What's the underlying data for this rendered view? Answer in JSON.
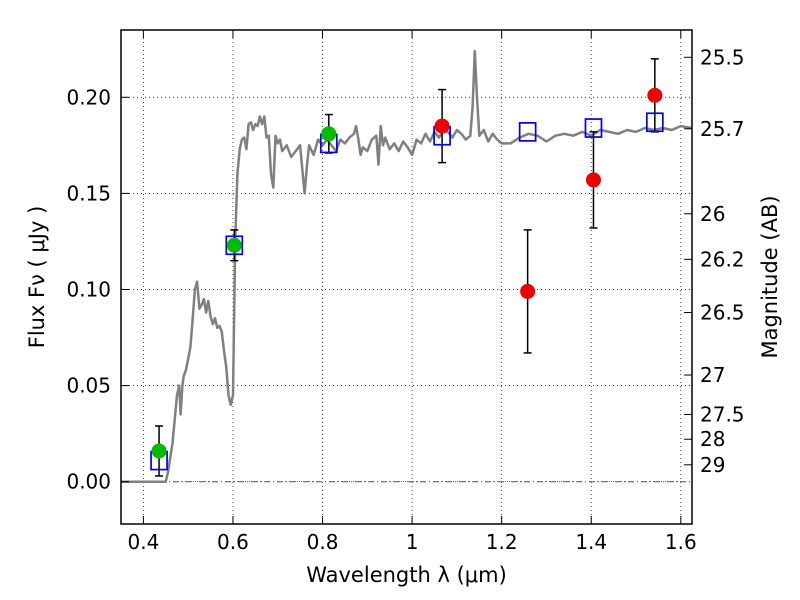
{
  "chart_data": {
    "type": "scatter",
    "xlabel": "Wavelength  λ (μm)",
    "ylabel": "Flux  Fν  ( μJy )",
    "ylabel_right": "Magnitude (AB)",
    "xlim": [
      0.35,
      1.625
    ],
    "ylim": [
      -0.022,
      0.235
    ],
    "grid": true,
    "x_ticks": [
      0.4,
      0.6,
      0.8,
      1.0,
      1.2,
      1.4,
      1.6
    ],
    "x_tick_labels": [
      "0.4",
      "0.6",
      "0.8",
      "1",
      "1.2",
      "1.4",
      "1.6"
    ],
    "y_ticks": [
      0.0,
      0.05,
      0.1,
      0.15,
      0.2
    ],
    "y_tick_labels": [
      "0.00",
      "0.05",
      "0.10",
      "0.15",
      "0.20"
    ],
    "right_ticks": [
      {
        "flux": 0.2208,
        "label": "25.5"
      },
      {
        "flux": 0.1836,
        "label": "25.7"
      },
      {
        "flux": 0.1394,
        "label": "26"
      },
      {
        "flux": 0.1157,
        "label": "26.2"
      },
      {
        "flux": 0.088,
        "label": "26.5"
      },
      {
        "flux": 0.0555,
        "label": "27"
      },
      {
        "flux": 0.035,
        "label": "27.5"
      },
      {
        "flux": 0.0221,
        "label": "28"
      },
      {
        "flux": 0.0088,
        "label": "29"
      }
    ],
    "colors": {
      "green_points": "#00bb00",
      "red_points": "#ee0000",
      "model_boxes": "#0000ee",
      "spectrum": "#808080",
      "errorbars": "#000000"
    },
    "series": [
      {
        "style": "green-circles",
        "points": [
          {
            "x": 0.435,
            "y": 0.016,
            "err": 0.013
          },
          {
            "x": 0.603,
            "y": 0.123,
            "err": 0.008
          },
          {
            "x": 0.814,
            "y": 0.181,
            "err": 0.01
          }
        ]
      },
      {
        "style": "red-circles",
        "points": [
          {
            "x": 1.067,
            "y": 0.185,
            "err": 0.019
          },
          {
            "x": 1.258,
            "y": 0.099,
            "err": 0.032
          },
          {
            "x": 1.405,
            "y": 0.157,
            "err": 0.025
          },
          {
            "x": 1.542,
            "y": 0.201,
            "err": 0.019
          }
        ]
      },
      {
        "style": "blue-open-squares",
        "points": [
          {
            "x": 0.435,
            "y": 0.011
          },
          {
            "x": 0.603,
            "y": 0.123
          },
          {
            "x": 0.814,
            "y": 0.176
          },
          {
            "x": 1.067,
            "y": 0.18
          },
          {
            "x": 1.258,
            "y": 0.182
          },
          {
            "x": 1.405,
            "y": 0.184
          },
          {
            "x": 1.542,
            "y": 0.187
          }
        ]
      },
      {
        "style": "gray-line",
        "points": [
          [
            0.35,
            0.0
          ],
          [
            0.45,
            0.0
          ],
          [
            0.455,
            0.005
          ],
          [
            0.465,
            0.02
          ],
          [
            0.475,
            0.045
          ],
          [
            0.48,
            0.05
          ],
          [
            0.483,
            0.035
          ],
          [
            0.487,
            0.05
          ],
          [
            0.49,
            0.055
          ],
          [
            0.495,
            0.058
          ],
          [
            0.5,
            0.064
          ],
          [
            0.505,
            0.07
          ],
          [
            0.51,
            0.085
          ],
          [
            0.515,
            0.1
          ],
          [
            0.52,
            0.104
          ],
          [
            0.525,
            0.09
          ],
          [
            0.53,
            0.092
          ],
          [
            0.535,
            0.095
          ],
          [
            0.54,
            0.088
          ],
          [
            0.545,
            0.094
          ],
          [
            0.55,
            0.086
          ],
          [
            0.555,
            0.082
          ],
          [
            0.56,
            0.085
          ],
          [
            0.565,
            0.08
          ],
          [
            0.57,
            0.081
          ],
          [
            0.575,
            0.078
          ],
          [
            0.58,
            0.068
          ],
          [
            0.585,
            0.06
          ],
          [
            0.59,
            0.045
          ],
          [
            0.595,
            0.04
          ],
          [
            0.6,
            0.045
          ],
          [
            0.605,
            0.125
          ],
          [
            0.61,
            0.16
          ],
          [
            0.615,
            0.173
          ],
          [
            0.62,
            0.178
          ],
          [
            0.625,
            0.179
          ],
          [
            0.63,
            0.173
          ],
          [
            0.635,
            0.186
          ],
          [
            0.64,
            0.187
          ],
          [
            0.645,
            0.183
          ],
          [
            0.65,
            0.186
          ],
          [
            0.655,
            0.185
          ],
          [
            0.66,
            0.19
          ],
          [
            0.665,
            0.186
          ],
          [
            0.67,
            0.19
          ],
          [
            0.675,
            0.179
          ],
          [
            0.68,
            0.18
          ],
          [
            0.685,
            0.16
          ],
          [
            0.69,
            0.153
          ],
          [
            0.695,
            0.18
          ],
          [
            0.7,
            0.176
          ],
          [
            0.705,
            0.178
          ],
          [
            0.71,
            0.172
          ],
          [
            0.72,
            0.175
          ],
          [
            0.73,
            0.169
          ],
          [
            0.74,
            0.172
          ],
          [
            0.75,
            0.175
          ],
          [
            0.755,
            0.162
          ],
          [
            0.76,
            0.15
          ],
          [
            0.765,
            0.164
          ],
          [
            0.77,
            0.175
          ],
          [
            0.78,
            0.17
          ],
          [
            0.79,
            0.178
          ],
          [
            0.8,
            0.175
          ],
          [
            0.81,
            0.178
          ],
          [
            0.82,
            0.175
          ],
          [
            0.83,
            0.172
          ],
          [
            0.84,
            0.178
          ],
          [
            0.85,
            0.176
          ],
          [
            0.86,
            0.179
          ],
          [
            0.87,
            0.181
          ],
          [
            0.875,
            0.185
          ],
          [
            0.88,
            0.178
          ],
          [
            0.885,
            0.17
          ],
          [
            0.89,
            0.174
          ],
          [
            0.9,
            0.172
          ],
          [
            0.91,
            0.178
          ],
          [
            0.92,
            0.18
          ],
          [
            0.925,
            0.165
          ],
          [
            0.93,
            0.185
          ],
          [
            0.935,
            0.175
          ],
          [
            0.94,
            0.179
          ],
          [
            0.95,
            0.173
          ],
          [
            0.96,
            0.176
          ],
          [
            0.97,
            0.172
          ],
          [
            0.98,
            0.177
          ],
          [
            0.99,
            0.174
          ],
          [
            1.0,
            0.17
          ],
          [
            1.01,
            0.178
          ],
          [
            1.02,
            0.176
          ],
          [
            1.03,
            0.181
          ],
          [
            1.04,
            0.177
          ],
          [
            1.05,
            0.182
          ],
          [
            1.06,
            0.179
          ],
          [
            1.07,
            0.183
          ],
          [
            1.08,
            0.182
          ],
          [
            1.09,
            0.179
          ],
          [
            1.1,
            0.183
          ],
          [
            1.11,
            0.181
          ],
          [
            1.12,
            0.178
          ],
          [
            1.13,
            0.18
          ],
          [
            1.135,
            0.195
          ],
          [
            1.14,
            0.224
          ],
          [
            1.145,
            0.2
          ],
          [
            1.15,
            0.18
          ],
          [
            1.16,
            0.183
          ],
          [
            1.17,
            0.177
          ],
          [
            1.18,
            0.181
          ],
          [
            1.19,
            0.178
          ],
          [
            1.2,
            0.176
          ],
          [
            1.22,
            0.176
          ],
          [
            1.24,
            0.179
          ],
          [
            1.26,
            0.181
          ],
          [
            1.28,
            0.18
          ],
          [
            1.3,
            0.177
          ],
          [
            1.32,
            0.18
          ],
          [
            1.34,
            0.181
          ],
          [
            1.36,
            0.18
          ],
          [
            1.38,
            0.182
          ],
          [
            1.4,
            0.18
          ],
          [
            1.42,
            0.183
          ],
          [
            1.44,
            0.182
          ],
          [
            1.46,
            0.181
          ],
          [
            1.48,
            0.183
          ],
          [
            1.5,
            0.182
          ],
          [
            1.52,
            0.184
          ],
          [
            1.54,
            0.183
          ],
          [
            1.56,
            0.184
          ],
          [
            1.58,
            0.183
          ],
          [
            1.6,
            0.185
          ],
          [
            1.625,
            0.184
          ]
        ]
      }
    ]
  }
}
